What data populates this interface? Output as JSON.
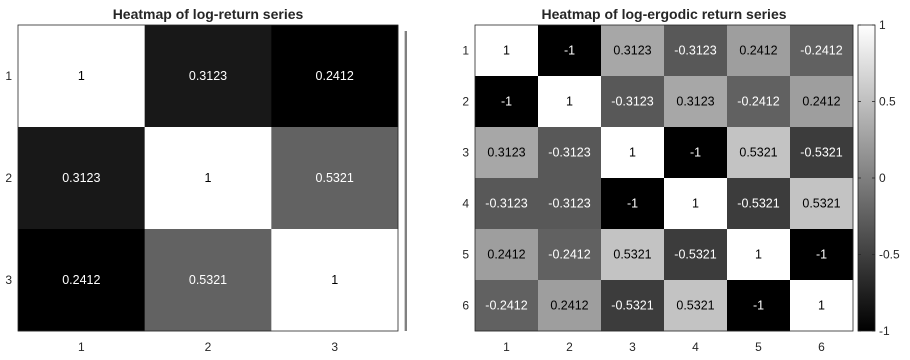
{
  "chart_data": [
    {
      "type": "heatmap",
      "title": "Heatmap of log-return series",
      "row_labels": [
        "1",
        "2",
        "3"
      ],
      "col_labels": [
        "1",
        "2",
        "3"
      ],
      "values": [
        [
          1,
          0.3123,
          0.2412
        ],
        [
          0.3123,
          1,
          0.5321
        ],
        [
          0.2412,
          0.5321,
          1
        ]
      ],
      "cell_labels": [
        [
          "1",
          "0.3123",
          "0.2412"
        ],
        [
          "0.3123",
          "1",
          "0.5321"
        ],
        [
          "0.2412",
          "0.5321",
          "1"
        ]
      ],
      "colormap": "gray",
      "clim": [
        0.2412,
        1
      ],
      "colorbar": false
    },
    {
      "type": "heatmap",
      "title": "Heatmap of  log-ergodic return series",
      "row_labels": [
        "1",
        "2",
        "3",
        "4",
        "5",
        "6"
      ],
      "col_labels": [
        "1",
        "2",
        "3",
        "4",
        "5",
        "6"
      ],
      "values": [
        [
          1,
          -1,
          0.3123,
          -0.3123,
          0.2412,
          -0.2412
        ],
        [
          -1,
          1,
          -0.3123,
          0.3123,
          -0.2412,
          0.2412
        ],
        [
          0.3123,
          -0.3123,
          1,
          -1,
          0.5321,
          -0.5321
        ],
        [
          -0.3123,
          -0.3123,
          -1,
          1,
          -0.5321,
          0.5321
        ],
        [
          0.2412,
          -0.2412,
          0.5321,
          -0.5321,
          1,
          -1
        ],
        [
          -0.2412,
          0.2412,
          -0.5321,
          0.5321,
          -1,
          1
        ]
      ],
      "cell_labels": [
        [
          "1",
          "-1",
          "0.3123",
          "-0.3123",
          "0.2412",
          "-0.2412"
        ],
        [
          "-1",
          "1",
          "-0.3123",
          "0.3123",
          "-0.2412",
          "0.2412"
        ],
        [
          "0.3123",
          "-0.3123",
          "1",
          "-1",
          "0.5321",
          "-0.5321"
        ],
        [
          "-0.3123",
          "-0.3123",
          "-1",
          "1",
          "-0.5321",
          "0.5321"
        ],
        [
          "0.2412",
          "-0.2412",
          "0.5321",
          "-0.5321",
          "1",
          "-1"
        ],
        [
          "-0.2412",
          "0.2412",
          "-0.5321",
          "0.5321",
          "-1",
          "1"
        ]
      ],
      "colormap": "gray",
      "clim": [
        -1,
        1
      ],
      "colorbar": true,
      "colorbar_ticks": [
        1,
        0.5,
        0,
        -0.5,
        -1
      ],
      "colorbar_tick_labels": [
        "1",
        "0.5",
        "0",
        "-0.5",
        "-1"
      ]
    }
  ]
}
